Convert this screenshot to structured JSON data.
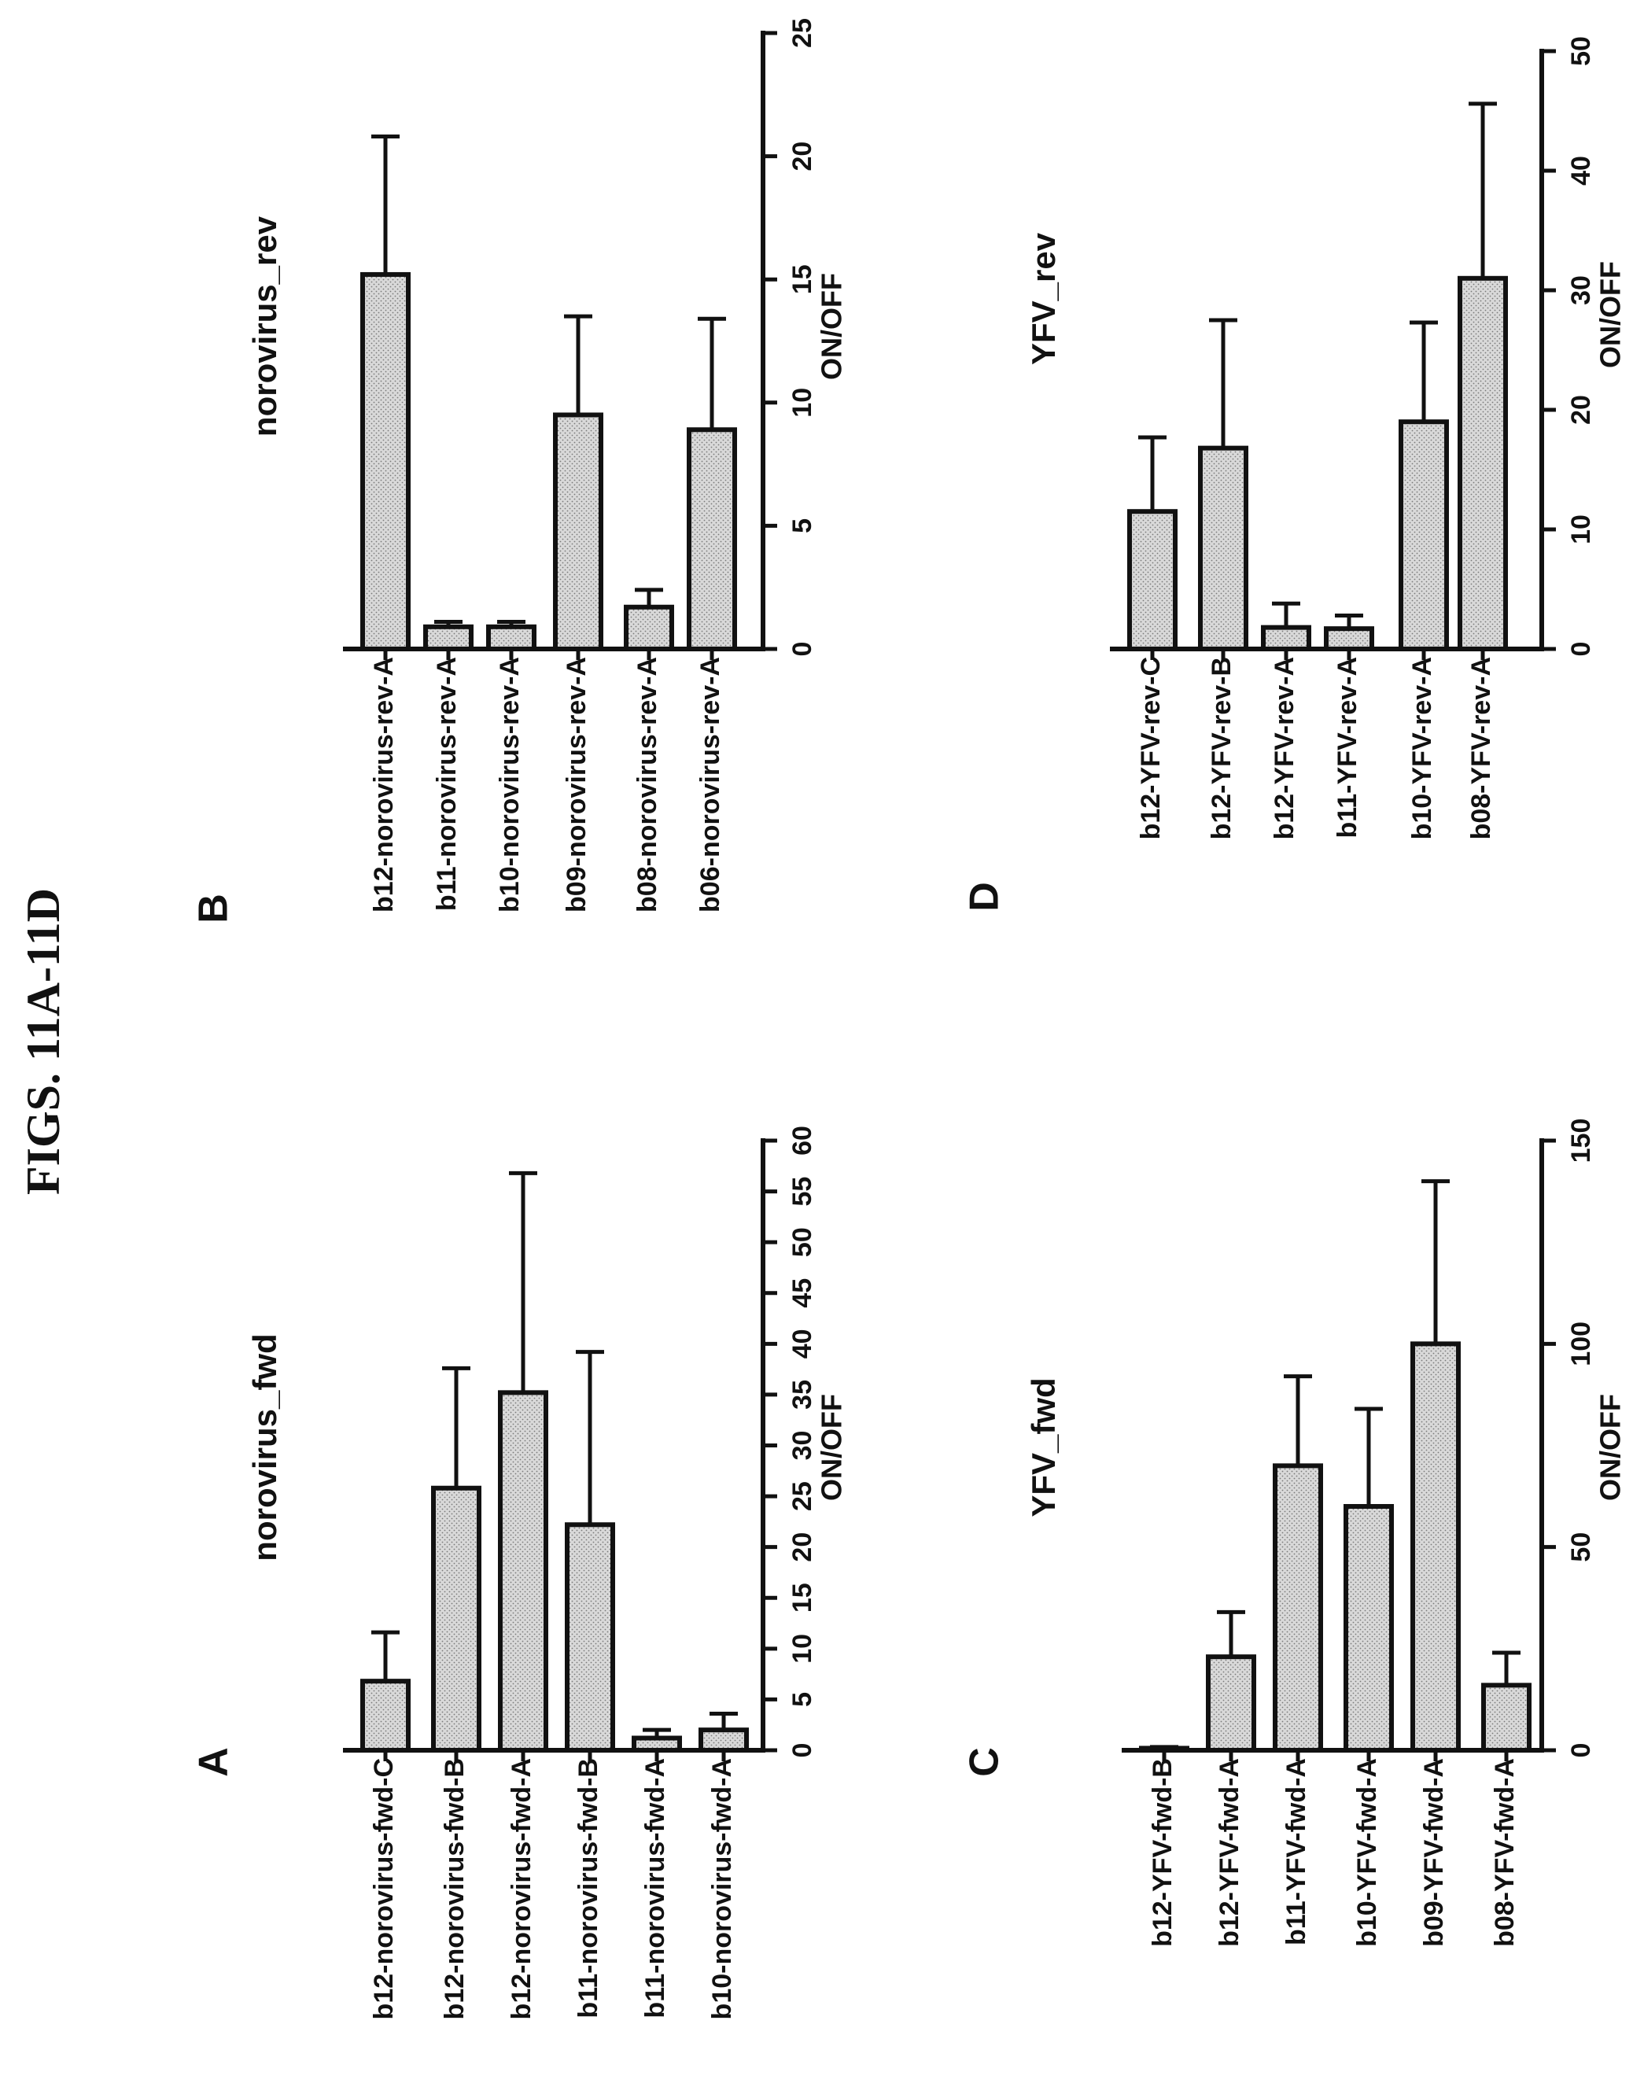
{
  "figure_title": "FIGS. 11A-11D",
  "colors": {
    "ink": "#111111",
    "bar_fill": "#d9d9d9",
    "bar_dots": "#7a7a7a",
    "background": "#ffffff"
  },
  "chart_data": [
    {
      "panel": "A",
      "type": "bar",
      "orientation": "horizontal (figure rotated 90° counter-clockwise)",
      "title": "norovirus_fwd",
      "xlabel": "",
      "ylabel": "ON/OFF",
      "ylim": [
        0,
        60
      ],
      "ticks": [
        0,
        5,
        10,
        15,
        20,
        25,
        30,
        35,
        40,
        45,
        50,
        55,
        60
      ],
      "categories": [
        "b12-norovirus-fwd-C",
        "b12-norovirus-fwd-B",
        "b12-norovirus-fwd-A",
        "b11-norovirus-fwd-B",
        "b11-norovirus-fwd-A",
        "b10-norovirus-fwd-A"
      ],
      "values": [
        6.8,
        25.8,
        35.2,
        22.2,
        1.2,
        2.0
      ],
      "errors": [
        4.8,
        11.8,
        21.6,
        17.0,
        0.8,
        1.6
      ],
      "grid": false
    },
    {
      "panel": "B",
      "type": "bar",
      "orientation": "horizontal (figure rotated 90° counter-clockwise)",
      "title": "norovirus_rev",
      "xlabel": "",
      "ylabel": "ON/OFF",
      "ylim": [
        0,
        25
      ],
      "ticks": [
        0,
        5,
        10,
        15,
        20,
        25
      ],
      "categories": [
        "b12-norovirus-rev-A",
        "b11-norovirus-rev-A",
        "b10-norovirus-rev-A",
        "b09-norovirus-rev-A",
        "b08-norovirus-rev-A",
        "b06-norovirus-rev-A"
      ],
      "values": [
        15.2,
        0.9,
        0.9,
        9.5,
        1.7,
        8.9
      ],
      "errors": [
        5.6,
        0.2,
        0.2,
        4.0,
        0.7,
        4.5
      ],
      "grid": false
    },
    {
      "panel": "C",
      "type": "bar",
      "orientation": "horizontal (figure rotated 90° counter-clockwise)",
      "title": "YFV_fwd",
      "xlabel": "",
      "ylabel": "ON/OFF",
      "ylim": [
        0,
        150
      ],
      "ticks": [
        0,
        50,
        100,
        150
      ],
      "categories": [
        "b12-YFV-fwd-B",
        "b12-YFV-fwd-A",
        "b11-YFV-fwd-A",
        "b10-YFV-fwd-A",
        "b09-YFV-fwd-A",
        "b08-YFV-fwd-A"
      ],
      "values": [
        0.5,
        23,
        70,
        60,
        100,
        16
      ],
      "errors": [
        0.3,
        11,
        22,
        24,
        40,
        8
      ],
      "grid": false
    },
    {
      "panel": "D",
      "type": "bar",
      "orientation": "horizontal (figure rotated 90° counter-clockwise)",
      "title": "YFV_rev",
      "xlabel": "",
      "ylabel": "ON/OFF",
      "ylim": [
        0,
        50
      ],
      "ticks": [
        0,
        10,
        20,
        30,
        40,
        50
      ],
      "categories": [
        "b12-YFV-rev-C",
        "b12-YFV-rev-B",
        "b12-YFV-rev-A",
        "b11-YFV-rev-A",
        "b10-YFV-rev-A",
        "b08-YFV-rev-A"
      ],
      "values": [
        11.5,
        16.8,
        1.8,
        1.7,
        19.0,
        31.0
      ],
      "errors": [
        6.2,
        10.7,
        2.0,
        1.1,
        8.3,
        14.6
      ],
      "grid": false
    }
  ]
}
